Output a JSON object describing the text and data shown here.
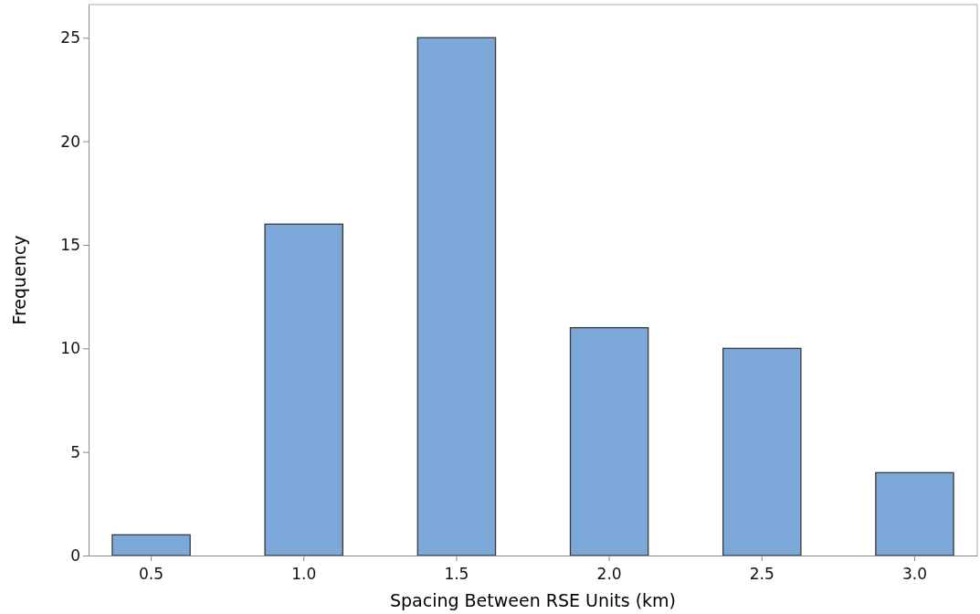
{
  "chart_data": {
    "type": "bar",
    "xlabel": "Spacing Between RSE Units (km)",
    "ylabel": "Frequency",
    "categories": [
      "0.5",
      "1.0",
      "1.5",
      "2.0",
      "2.5",
      "3.0"
    ],
    "series": [
      {
        "color": "#7ba7d9",
        "values": [
          1,
          16,
          25,
          11,
          10,
          4
        ]
      }
    ],
    "ylim": [
      0,
      26.6
    ],
    "yticks": [
      0,
      5,
      10,
      15,
      20,
      25
    ],
    "grid": false
  }
}
